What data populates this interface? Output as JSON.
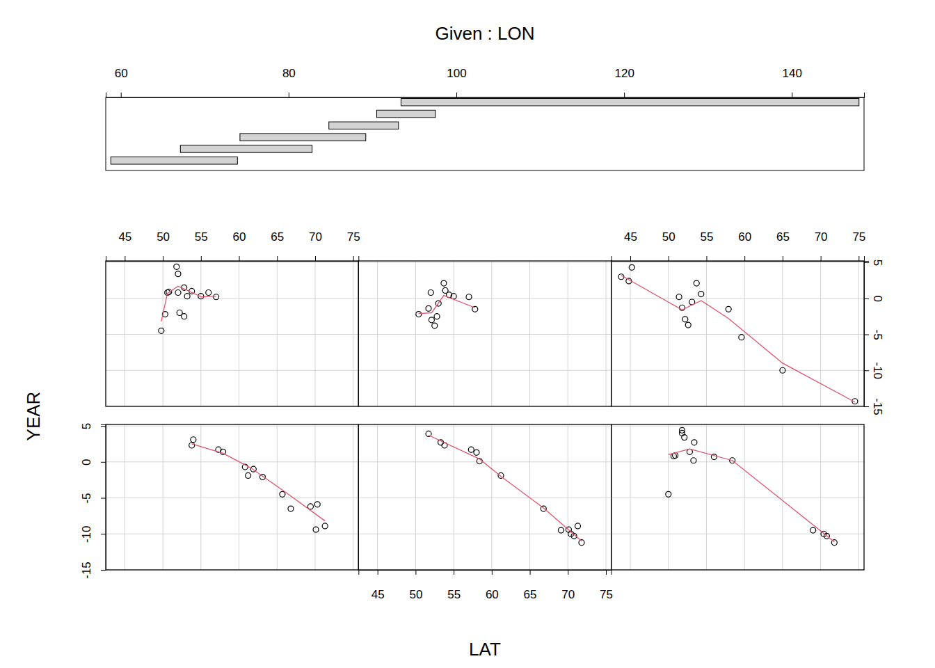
{
  "chart_data": {
    "type": "coplot",
    "title": "Given : LON",
    "xlabel": "LAT",
    "ylabel": "YEAR",
    "grid": true,
    "xlim": [
      42.5,
      75.7
    ],
    "xticks": [
      45,
      50,
      55,
      60,
      65,
      70,
      75
    ],
    "ylim": [
      -15,
      5.2
    ],
    "yticks": [
      -15,
      -10,
      -5,
      0,
      5
    ],
    "given": {
      "xlim": [
        58.2,
        148.6
      ],
      "xticks": [
        60,
        80,
        100,
        120,
        140
      ],
      "color": "#d3d3d3",
      "intervals": [
        [
          58.8,
          73.9
        ],
        [
          67.1,
          82.8
        ],
        [
          74.2,
          89.2
        ],
        [
          84.8,
          93.1
        ],
        [
          90.5,
          97.5
        ],
        [
          93.4,
          148.0
        ]
      ]
    },
    "panels": [
      {
        "series": [
          {
            "type": "scatter",
            "marker": "circle",
            "color": "#000000",
            "x": [
              53.8,
              54.0,
              57.3,
              57.9,
              60.8,
              61.2,
              61.9,
              63.1,
              65.7,
              66.8,
              69.4,
              70.3,
              70.1,
              71.3
            ],
            "values": [
              2.3,
              3.1,
              1.7,
              1.4,
              -0.7,
              -1.9,
              -1.0,
              -2.1,
              -4.5,
              -6.5,
              -6.2,
              -5.9,
              -9.4,
              -8.9
            ]
          },
          {
            "type": "line",
            "color": "#DF536B",
            "x": [
              53.8,
              57.9,
              61.5,
              66.1,
              71.3
            ],
            "values": [
              2.5,
              1.2,
              -0.8,
              -4.2,
              -8.2
            ]
          }
        ]
      },
      {
        "series": [
          {
            "type": "scatter",
            "marker": "circle",
            "color": "#000000",
            "x": [
              51.7,
              53.3,
              53.8,
              57.3,
              58.0,
              58.4,
              61.2,
              66.8,
              69.1,
              70.1,
              70.4,
              70.8,
              71.3,
              71.8
            ],
            "values": [
              3.9,
              2.7,
              2.3,
              1.7,
              1.3,
              0.1,
              -1.9,
              -6.5,
              -9.5,
              -9.4,
              -10.0,
              -10.3,
              -8.9,
              -11.2
            ]
          },
          {
            "type": "line",
            "color": "#DF536B",
            "x": [
              51.7,
              58.4,
              61.2,
              66.8,
              71.8
            ],
            "values": [
              3.7,
              0.4,
              -2.0,
              -6.4,
              -11.0
            ]
          }
        ]
      },
      {
        "series": [
          {
            "type": "scatter",
            "marker": "circle",
            "color": "#000000",
            "x": [
              50.0,
              50.7,
              50.9,
              51.8,
              51.8,
              52.1,
              52.8,
              53.3,
              53.4,
              56.0,
              58.4,
              69.0,
              70.4,
              70.8,
              71.8
            ],
            "values": [
              -4.5,
              0.8,
              0.9,
              4.0,
              4.4,
              3.4,
              1.4,
              0.2,
              2.7,
              0.7,
              0.2,
              -9.5,
              -10.0,
              -10.3,
              -11.2
            ]
          },
          {
            "type": "line",
            "color": "#DF536B",
            "x": [
              50.0,
              52.8,
              58.4,
              71.8
            ],
            "values": [
              1.0,
              1.8,
              0.2,
              -11.1
            ]
          }
        ]
      },
      {
        "series": [
          {
            "type": "scatter",
            "marker": "circle",
            "color": "#000000",
            "x": [
              49.8,
              50.3,
              50.6,
              50.8,
              51.8,
              52.0,
              52.0,
              52.2,
              52.8,
              52.8,
              53.2,
              53.8,
              55.0,
              56.0,
              57.0
            ],
            "values": [
              -4.5,
              -2.2,
              0.8,
              0.9,
              4.4,
              3.4,
              0.8,
              -2.0,
              1.5,
              -2.5,
              0.3,
              1.0,
              0.3,
              0.8,
              0.2
            ]
          },
          {
            "type": "line",
            "color": "#DF536B",
            "x": [
              49.8,
              50.6,
              52.0,
              55.1,
              57.0
            ],
            "values": [
              -3.2,
              0.7,
              1.7,
              0.2,
              0.3
            ]
          }
        ]
      },
      {
        "series": [
          {
            "type": "scatter",
            "marker": "circle",
            "color": "#000000",
            "x": [
              50.4,
              51.7,
              52.0,
              52.1,
              52.5,
              52.8,
              53.0,
              53.7,
              53.9,
              54.4,
              55.0,
              57.0,
              57.8
            ],
            "values": [
              -2.2,
              -1.4,
              0.8,
              -3.0,
              -3.8,
              -2.5,
              -0.7,
              2.1,
              1.1,
              0.5,
              0.3,
              0.2,
              -1.5
            ]
          },
          {
            "type": "line",
            "color": "#DF536B",
            "x": [
              50.4,
              52.1,
              53.7,
              57.8
            ],
            "values": [
              -2.1,
              -2.0,
              0.4,
              -1.3
            ]
          }
        ]
      },
      {
        "series": [
          {
            "type": "scatter",
            "marker": "circle",
            "color": "#000000",
            "x": [
              43.8,
              44.8,
              45.2,
              51.4,
              51.8,
              52.2,
              52.6,
              53.1,
              53.7,
              54.3,
              57.9,
              59.6,
              65.0,
              74.5
            ],
            "values": [
              3.0,
              2.4,
              4.3,
              0.2,
              -1.3,
              -2.9,
              -3.7,
              -0.5,
              2.1,
              0.6,
              -1.5,
              -5.4,
              -10.0,
              -14.3
            ]
          },
          {
            "type": "line",
            "color": "#DF536B",
            "x": [
              43.8,
              51.8,
              54.3,
              57.9,
              65.0,
              74.5
            ],
            "values": [
              3.2,
              -1.6,
              -0.3,
              -2.8,
              -9.0,
              -14.4
            ]
          }
        ]
      }
    ]
  }
}
